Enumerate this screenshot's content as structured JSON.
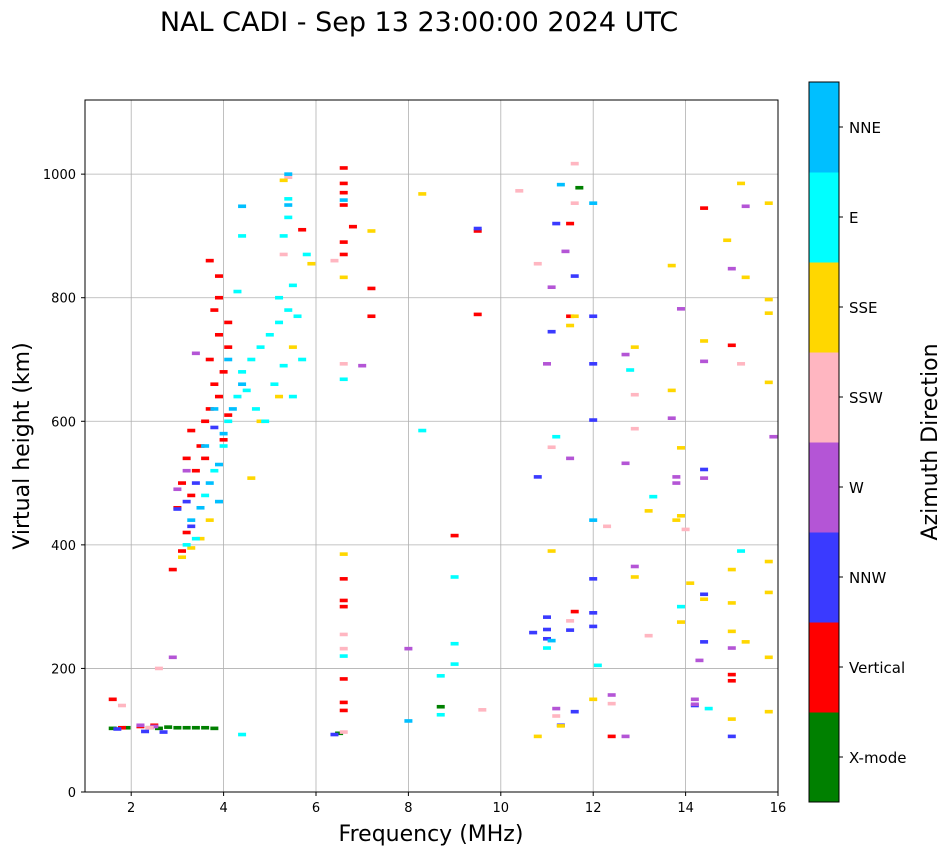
{
  "chart_data": {
    "type": "scatter",
    "title": "NAL CADI - Sep 13 23:00:00 2024 UTC",
    "xlabel": "Frequency (MHz)",
    "ylabel": "Virtual height (km)",
    "xlim": [
      1,
      16
    ],
    "ylim": [
      0,
      1120
    ],
    "xticks": [
      2,
      4,
      6,
      8,
      10,
      12,
      14,
      16
    ],
    "yticks": [
      0,
      200,
      400,
      600,
      800,
      1000
    ],
    "grid": true,
    "colorbar": {
      "label": "Azimuth Direction",
      "categories": [
        "X-mode",
        "Vertical",
        "NNW",
        "W",
        "SSW",
        "SSE",
        "E",
        "NNE"
      ],
      "colors": [
        "#008000",
        "#ff0000",
        "#3a3aff",
        "#b455d6",
        "#ffb6c1",
        "#ffd700",
        "#00ffff",
        "#00bfff"
      ]
    },
    "series": [
      {
        "name": "X-mode",
        "points": [
          [
            2.8,
            105
          ],
          [
            3.0,
            104
          ],
          [
            3.2,
            104
          ],
          [
            3.4,
            104
          ],
          [
            3.6,
            104
          ],
          [
            3.8,
            103
          ],
          [
            2.6,
            103
          ],
          [
            2.4,
            104
          ],
          [
            1.6,
            103
          ],
          [
            1.9,
            104
          ],
          [
            8.7,
            138
          ],
          [
            11.7,
            978
          ],
          [
            6.5,
            95
          ]
        ]
      },
      {
        "name": "Vertical",
        "points": [
          [
            1.6,
            150
          ],
          [
            1.8,
            104
          ],
          [
            2.2,
            106
          ],
          [
            2.5,
            108
          ],
          [
            2.9,
            360
          ],
          [
            3.1,
            390
          ],
          [
            3.2,
            420
          ],
          [
            3.0,
            460
          ],
          [
            3.3,
            480
          ],
          [
            3.1,
            500
          ],
          [
            3.4,
            520
          ],
          [
            3.2,
            540
          ],
          [
            3.5,
            560
          ],
          [
            3.3,
            585
          ],
          [
            3.6,
            600
          ],
          [
            3.7,
            620
          ],
          [
            3.9,
            640
          ],
          [
            3.8,
            660
          ],
          [
            4.0,
            680
          ],
          [
            3.7,
            700
          ],
          [
            4.1,
            720
          ],
          [
            3.9,
            740
          ],
          [
            4.1,
            760
          ],
          [
            3.8,
            780
          ],
          [
            3.9,
            800
          ],
          [
            3.7,
            860
          ],
          [
            3.9,
            835
          ],
          [
            4.1,
            610
          ],
          [
            4.0,
            570
          ],
          [
            3.6,
            540
          ],
          [
            5.7,
            910
          ],
          [
            6.6,
            1010
          ],
          [
            6.6,
            985
          ],
          [
            6.6,
            970
          ],
          [
            6.6,
            950
          ],
          [
            6.6,
            890
          ],
          [
            6.6,
            870
          ],
          [
            6.6,
            345
          ],
          [
            6.6,
            310
          ],
          [
            6.6,
            300
          ],
          [
            6.6,
            183
          ],
          [
            6.6,
            145
          ],
          [
            6.6,
            132
          ],
          [
            6.8,
            915
          ],
          [
            7.2,
            815
          ],
          [
            7.2,
            770
          ],
          [
            9.0,
            415
          ],
          [
            9.5,
            908
          ],
          [
            9.5,
            773
          ],
          [
            11.5,
            920
          ],
          [
            11.6,
            292
          ],
          [
            11.5,
            770
          ],
          [
            12.4,
            90
          ],
          [
            14.4,
            945
          ],
          [
            15.0,
            723
          ],
          [
            15.0,
            190
          ],
          [
            15.0,
            180
          ]
        ]
      },
      {
        "name": "NNW",
        "points": [
          [
            1.7,
            102
          ],
          [
            2.3,
            98
          ],
          [
            2.7,
            97
          ],
          [
            3.0,
            458
          ],
          [
            3.2,
            470
          ],
          [
            3.4,
            500
          ],
          [
            3.3,
            430
          ],
          [
            3.8,
            590
          ],
          [
            11.1,
            745
          ],
          [
            11.2,
            920
          ],
          [
            11.6,
            835
          ],
          [
            10.8,
            510
          ],
          [
            12.0,
            770
          ],
          [
            12.0,
            693
          ],
          [
            12.0,
            602
          ],
          [
            12.0,
            345
          ],
          [
            12.0,
            290
          ],
          [
            12.0,
            268
          ],
          [
            11.3,
            108
          ],
          [
            11.6,
            130
          ],
          [
            11.0,
            283
          ],
          [
            11.0,
            263
          ],
          [
            10.7,
            258
          ],
          [
            11.0,
            248
          ],
          [
            11.5,
            262
          ],
          [
            14.4,
            522
          ],
          [
            14.4,
            320
          ],
          [
            14.4,
            243
          ],
          [
            14.2,
            140
          ],
          [
            15.0,
            90
          ],
          [
            6.4,
            93
          ],
          [
            9.5,
            912
          ]
        ]
      },
      {
        "name": "W",
        "points": [
          [
            2.2,
            108
          ],
          [
            2.5,
            106
          ],
          [
            2.9,
            218
          ],
          [
            3.0,
            490
          ],
          [
            3.2,
            520
          ],
          [
            3.4,
            710
          ],
          [
            7.0,
            690
          ],
          [
            8.0,
            232
          ],
          [
            11.1,
            817
          ],
          [
            11.0,
            693
          ],
          [
            11.4,
            875
          ],
          [
            11.2,
            135
          ],
          [
            11.5,
            540
          ],
          [
            12.7,
            708
          ],
          [
            12.7,
            532
          ],
          [
            12.9,
            365
          ],
          [
            13.9,
            782
          ],
          [
            13.7,
            605
          ],
          [
            13.8,
            510
          ],
          [
            13.8,
            500
          ],
          [
            14.4,
            697
          ],
          [
            14.4,
            508
          ],
          [
            14.3,
            213
          ],
          [
            14.2,
            150
          ],
          [
            14.2,
            142
          ],
          [
            15.3,
            948
          ],
          [
            15.0,
            233
          ],
          [
            15.0,
            847
          ],
          [
            15.9,
            575
          ],
          [
            12.4,
            157
          ],
          [
            12.7,
            90
          ]
        ]
      },
      {
        "name": "SSW",
        "points": [
          [
            1.8,
            140
          ],
          [
            2.6,
            200
          ],
          [
            2.4,
            104
          ],
          [
            5.4,
            995
          ],
          [
            5.3,
            870
          ],
          [
            6.4,
            860
          ],
          [
            6.6,
            693
          ],
          [
            6.6,
            255
          ],
          [
            6.6,
            232
          ],
          [
            6.6,
            97
          ],
          [
            9.6,
            133
          ],
          [
            10.4,
            973
          ],
          [
            10.8,
            855
          ],
          [
            11.1,
            558
          ],
          [
            11.2,
            123
          ],
          [
            11.5,
            277
          ],
          [
            11.6,
            1017
          ],
          [
            11.6,
            953
          ],
          [
            12.3,
            430
          ],
          [
            12.4,
            143
          ],
          [
            12.9,
            643
          ],
          [
            12.9,
            588
          ],
          [
            13.2,
            253
          ],
          [
            14.0,
            425
          ],
          [
            15.2,
            693
          ]
        ]
      },
      {
        "name": "SSE",
        "points": [
          [
            3.1,
            380
          ],
          [
            3.3,
            395
          ],
          [
            3.5,
            410
          ],
          [
            3.7,
            440
          ],
          [
            4.6,
            508
          ],
          [
            5.5,
            720
          ],
          [
            4.8,
            600
          ],
          [
            5.2,
            640
          ],
          [
            5.3,
            990
          ],
          [
            5.9,
            855
          ],
          [
            6.6,
            833
          ],
          [
            6.6,
            385
          ],
          [
            7.2,
            908
          ],
          [
            8.3,
            968
          ],
          [
            10.8,
            90
          ],
          [
            11.1,
            390
          ],
          [
            11.3,
            107
          ],
          [
            11.5,
            755
          ],
          [
            11.6,
            770
          ],
          [
            12.0,
            150
          ],
          [
            12.9,
            720
          ],
          [
            12.9,
            348
          ],
          [
            13.2,
            455
          ],
          [
            13.7,
            852
          ],
          [
            13.7,
            650
          ],
          [
            13.8,
            440
          ],
          [
            13.9,
            557
          ],
          [
            13.9,
            447
          ],
          [
            13.9,
            275
          ],
          [
            14.1,
            338
          ],
          [
            14.4,
            312
          ],
          [
            14.4,
            730
          ],
          [
            14.9,
            893
          ],
          [
            15.0,
            360
          ],
          [
            15.0,
            306
          ],
          [
            15.0,
            260
          ],
          [
            15.0,
            118
          ],
          [
            15.2,
            985
          ],
          [
            15.3,
            833
          ],
          [
            15.3,
            243
          ],
          [
            15.8,
            953
          ],
          [
            15.8,
            797
          ],
          [
            15.8,
            775
          ],
          [
            15.8,
            663
          ],
          [
            15.8,
            373
          ],
          [
            15.8,
            323
          ],
          [
            15.8,
            218
          ],
          [
            15.8,
            130
          ]
        ]
      },
      {
        "name": "E",
        "points": [
          [
            3.2,
            400
          ],
          [
            3.4,
            410
          ],
          [
            3.6,
            480
          ],
          [
            3.8,
            520
          ],
          [
            4.0,
            560
          ],
          [
            4.1,
            600
          ],
          [
            4.3,
            640
          ],
          [
            4.4,
            680
          ],
          [
            4.6,
            700
          ],
          [
            4.8,
            720
          ],
          [
            5.0,
            740
          ],
          [
            5.2,
            760
          ],
          [
            5.4,
            780
          ],
          [
            5.6,
            770
          ],
          [
            4.5,
            650
          ],
          [
            4.7,
            620
          ],
          [
            4.9,
            600
          ],
          [
            5.1,
            660
          ],
          [
            5.3,
            690
          ],
          [
            5.5,
            640
          ],
          [
            5.7,
            700
          ],
          [
            5.4,
            960
          ],
          [
            5.4,
            930
          ],
          [
            5.3,
            900
          ],
          [
            5.8,
            870
          ],
          [
            5.5,
            820
          ],
          [
            5.2,
            800
          ],
          [
            4.4,
            900
          ],
          [
            4.3,
            810
          ],
          [
            6.6,
            220
          ],
          [
            6.6,
            668
          ],
          [
            8.3,
            585
          ],
          [
            8.7,
            125
          ],
          [
            8.7,
            188
          ],
          [
            9.0,
            207
          ],
          [
            9.0,
            240
          ],
          [
            9.0,
            348
          ],
          [
            11.0,
            233
          ],
          [
            11.2,
            575
          ],
          [
            12.1,
            205
          ],
          [
            12.8,
            683
          ],
          [
            13.3,
            478
          ],
          [
            13.9,
            300
          ],
          [
            14.5,
            135
          ],
          [
            15.2,
            390
          ],
          [
            4.4,
            93
          ]
        ]
      },
      {
        "name": "NNE",
        "points": [
          [
            3.3,
            440
          ],
          [
            3.5,
            460
          ],
          [
            3.7,
            500
          ],
          [
            3.9,
            530
          ],
          [
            4.0,
            580
          ],
          [
            4.2,
            620
          ],
          [
            4.4,
            660
          ],
          [
            3.6,
            560
          ],
          [
            3.8,
            620
          ],
          [
            4.1,
            700
          ],
          [
            3.9,
            470
          ],
          [
            5.4,
            1000
          ],
          [
            5.4,
            950
          ],
          [
            6.6,
            958
          ],
          [
            11.3,
            983
          ],
          [
            12.0,
            953
          ],
          [
            12.0,
            440
          ],
          [
            8.0,
            115
          ],
          [
            11.1,
            245
          ],
          [
            4.4,
            948
          ]
        ]
      }
    ]
  }
}
